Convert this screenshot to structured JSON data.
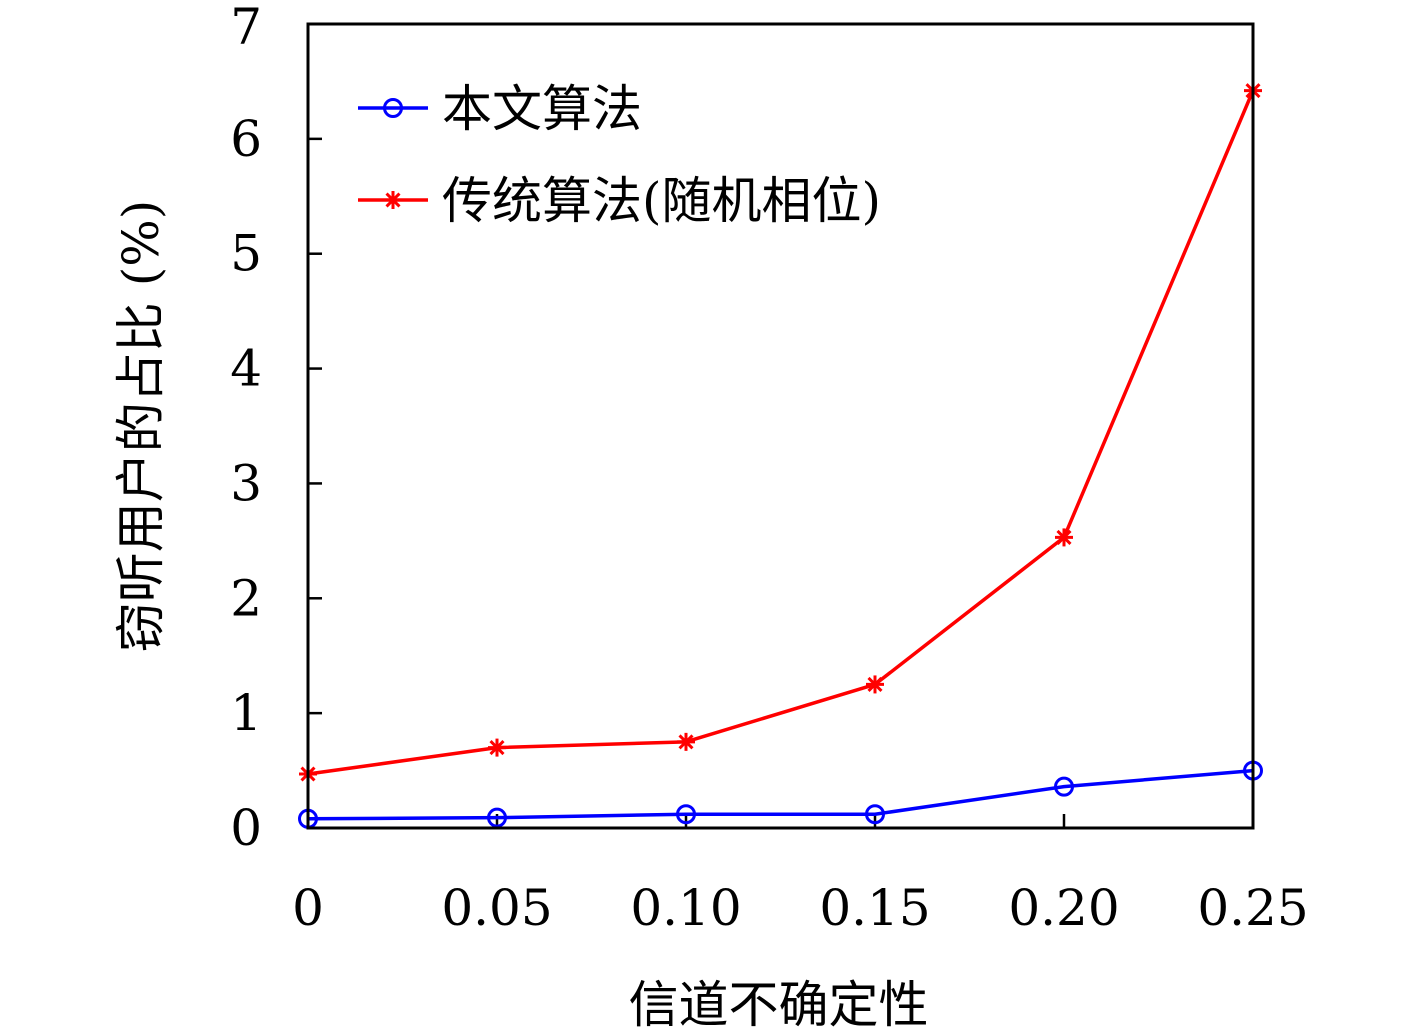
{
  "chart_data": {
    "type": "line",
    "x": [
      0,
      0.05,
      0.1,
      0.15,
      0.2,
      0.25
    ],
    "x_tick_labels": [
      "0",
      "0.05",
      "0.10",
      "0.15",
      "0.20",
      "0.25"
    ],
    "y_ticks": [
      0,
      1,
      2,
      3,
      4,
      5,
      6,
      7
    ],
    "xlim": [
      0,
      0.25
    ],
    "ylim": [
      0,
      7
    ],
    "xlabel": "信道不确定性",
    "ylabel": "窃听用户的占比 (%)",
    "grid": false,
    "legend_position": "top-left",
    "series": [
      {
        "name": "本文算法",
        "color": "#0000ff",
        "marker": "circle",
        "values": [
          0.08,
          0.09,
          0.12,
          0.12,
          0.36,
          0.5
        ]
      },
      {
        "name": "传统算法(随机相位)",
        "color": "#ff0000",
        "marker": "asterisk",
        "values": [
          0.47,
          0.7,
          0.75,
          1.25,
          2.53,
          6.42
        ]
      }
    ]
  }
}
